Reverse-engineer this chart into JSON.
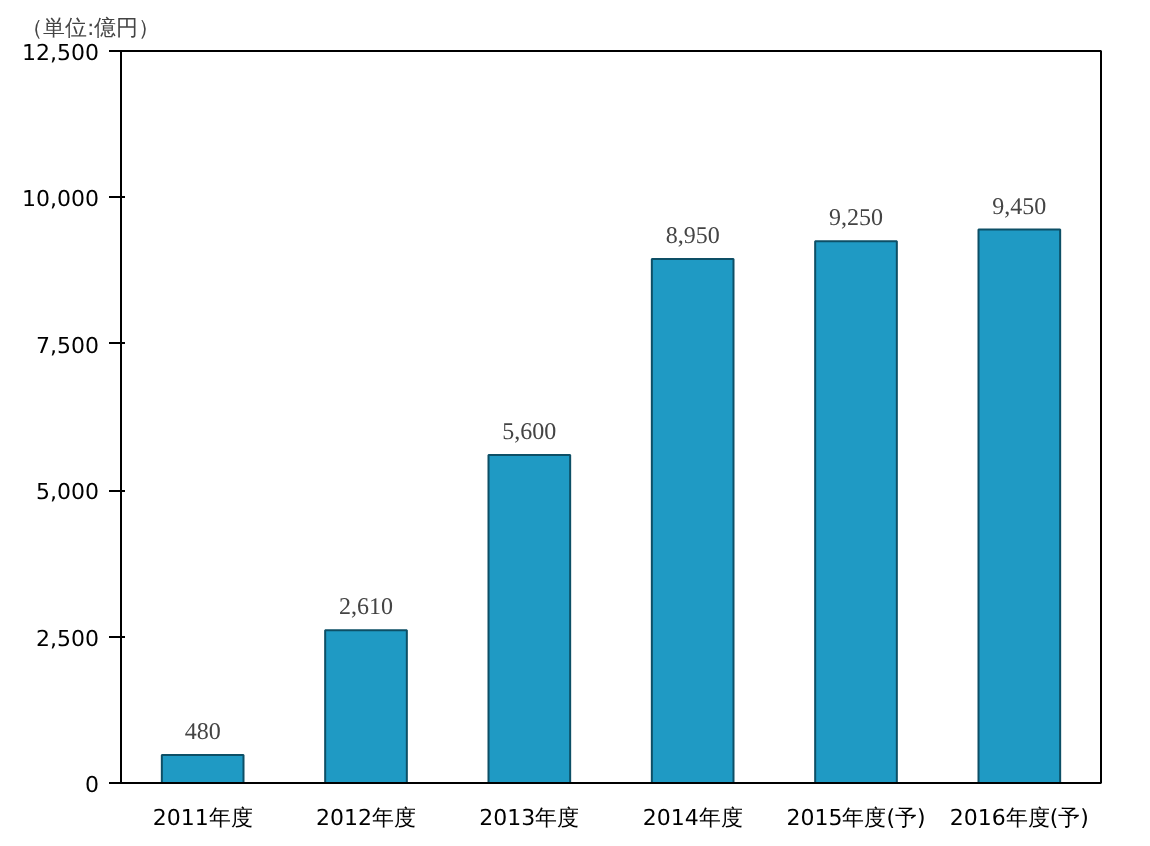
{
  "chart_data": {
    "type": "bar",
    "ylabel": "（単位:億円）",
    "categories": [
      "2011年度",
      "2012年度",
      "2013年度",
      "2014年度",
      "2015年度(予)",
      "2016年度(予)"
    ],
    "values": [
      480,
      2610,
      5600,
      8950,
      9250,
      9450
    ],
    "color": "#1f9ac4",
    "ylim": [
      0,
      12500
    ],
    "yticks": [
      {
        "value": 0,
        "label": "0"
      },
      {
        "value": 2500,
        "label": "2,500"
      },
      {
        "value": 5000,
        "label": "5,000"
      },
      {
        "value": 7500,
        "label": "7,500"
      },
      {
        "value": 10000,
        "label": "10,000"
      },
      {
        "value": 12500,
        "label": "12,500"
      }
    ],
    "value_labels": [
      "480",
      "2,610",
      "5,600",
      "8,950",
      "9,250",
      "9,450"
    ],
    "grid": false
  }
}
